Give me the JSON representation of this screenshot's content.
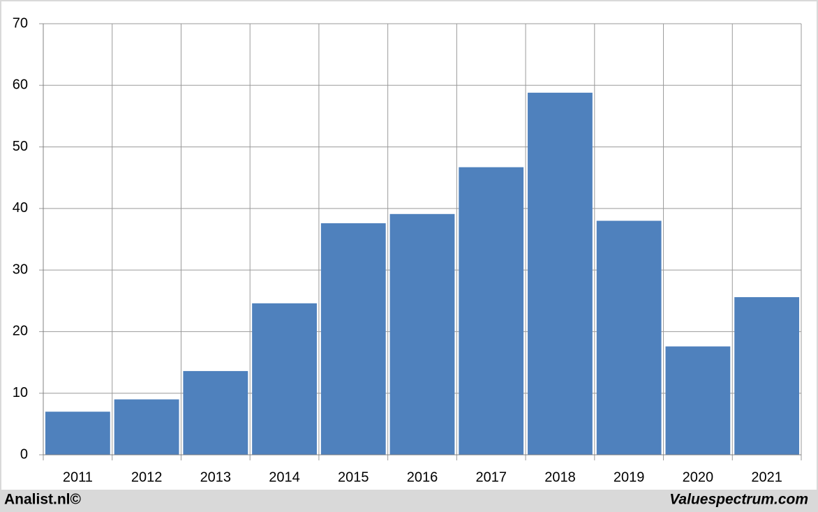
{
  "chart_data": {
    "type": "bar",
    "categories": [
      "2011",
      "2012",
      "2013",
      "2014",
      "2015",
      "2016",
      "2017",
      "2018",
      "2019",
      "2020",
      "2021"
    ],
    "values": [
      7.0,
      9.0,
      13.6,
      24.6,
      37.6,
      39.1,
      46.7,
      58.8,
      38.0,
      17.6,
      25.6
    ],
    "color": "#4f81bd",
    "ylim": [
      0,
      70
    ],
    "yticks": [
      0,
      10,
      20,
      30,
      40,
      50,
      60,
      70
    ],
    "grid": true
  },
  "footer": {
    "left": "Analist.nl©",
    "right": "Valuespectrum.com"
  }
}
